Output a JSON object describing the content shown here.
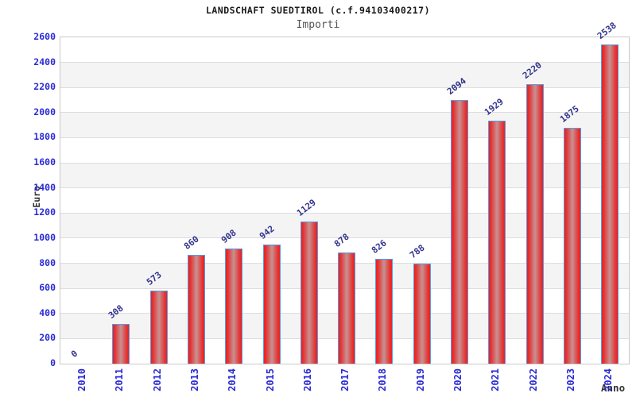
{
  "chart_data": {
    "type": "bar",
    "title": "LANDSCHAFT SUEDTIROL (c.f.94103400217)",
    "subtitle": "Importi",
    "xlabel": "Anno",
    "ylabel": "Euro",
    "categories": [
      "2010",
      "2011",
      "2012",
      "2013",
      "2014",
      "2015",
      "2016",
      "2017",
      "2018",
      "2019",
      "2020",
      "2021",
      "2022",
      "2023",
      "2024"
    ],
    "values": [
      0,
      308,
      573,
      860,
      908,
      942,
      1129,
      878,
      826,
      788,
      2094,
      1929,
      2220,
      1875,
      2538
    ],
    "yticks": [
      0,
      200,
      400,
      600,
      800,
      1000,
      1200,
      1400,
      1600,
      1800,
      2000,
      2200,
      2400,
      2600
    ],
    "ylim": [
      0,
      2600
    ],
    "grid": true,
    "legend": "none",
    "colors": {
      "bar_edge_red": "#f21d1d",
      "bar_center": "#c89192",
      "bar_border": "#4f9fe8",
      "axis_tick_label": "#2a2ad4",
      "value_label": "#32328e",
      "band_gray": "#f4f4f4",
      "gridline": "#dddddd",
      "title": "#1a1a1a",
      "subtitle": "#555555",
      "axis_title": "#333333"
    }
  }
}
